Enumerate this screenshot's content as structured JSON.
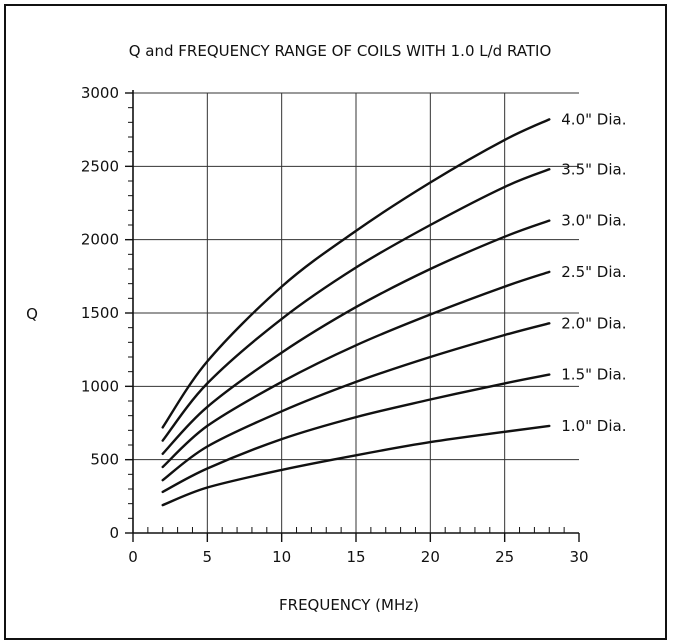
{
  "chart_data": {
    "type": "line",
    "title": "Q and FREQUENCY RANGE OF COILS WITH 1.0 L/d RATIO",
    "xlabel": "FREQUENCY (MHz)",
    "ylabel": "Q",
    "xlim": [
      0,
      30
    ],
    "ylim": [
      0,
      3000
    ],
    "x_major_ticks": [
      0,
      5,
      10,
      15,
      20,
      25,
      30
    ],
    "y_major_ticks": [
      0,
      500,
      1000,
      1500,
      2000,
      2500,
      3000
    ],
    "grid": true,
    "series": [
      {
        "name": "1.0\" Dia.",
        "x": [
          2,
          5,
          10,
          15,
          20,
          25,
          28
        ],
        "y": [
          190,
          310,
          430,
          530,
          620,
          690,
          730
        ]
      },
      {
        "name": "1.5\" Dia.",
        "x": [
          2,
          5,
          10,
          15,
          20,
          25,
          28
        ],
        "y": [
          280,
          440,
          640,
          790,
          910,
          1020,
          1080
        ]
      },
      {
        "name": "2.0\" Dia.",
        "x": [
          2,
          5,
          10,
          15,
          20,
          25,
          28
        ],
        "y": [
          360,
          590,
          830,
          1030,
          1200,
          1350,
          1430
        ]
      },
      {
        "name": "2.5\" Dia.",
        "x": [
          2,
          5,
          10,
          15,
          20,
          25,
          28
        ],
        "y": [
          450,
          730,
          1030,
          1280,
          1490,
          1680,
          1780
        ]
      },
      {
        "name": "3.0\" Dia.",
        "x": [
          2,
          5,
          10,
          15,
          20,
          25,
          28
        ],
        "y": [
          540,
          860,
          1230,
          1540,
          1800,
          2020,
          2130
        ]
      },
      {
        "name": "3.5\" Dia.",
        "x": [
          2,
          5,
          10,
          15,
          20,
          25,
          28
        ],
        "y": [
          630,
          1020,
          1460,
          1810,
          2100,
          2360,
          2480
        ]
      },
      {
        "name": "4.0\" Dia.",
        "x": [
          2,
          5,
          10,
          15,
          20,
          25,
          28
        ],
        "y": [
          720,
          1170,
          1680,
          2060,
          2390,
          2680,
          2820
        ]
      }
    ]
  }
}
